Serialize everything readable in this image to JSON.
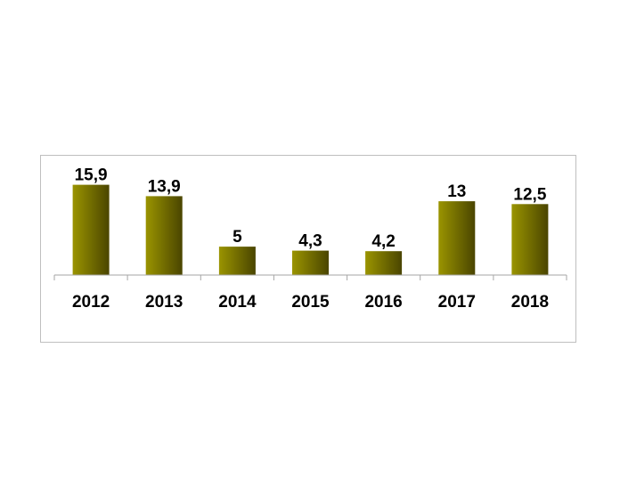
{
  "chart_data": {
    "type": "bar",
    "categories": [
      "2012",
      "2013",
      "2014",
      "2015",
      "2016",
      "2017",
      "2018"
    ],
    "values": [
      15.9,
      13.9,
      5,
      4.3,
      4.2,
      13,
      12.5
    ],
    "data_labels": [
      "15,9",
      "13,9",
      "5",
      "4,3",
      "4,2",
      "13",
      "12,5"
    ],
    "title": "",
    "xlabel": "",
    "ylabel": "",
    "ylim": [
      0,
      16
    ],
    "grid": false,
    "legend": "none",
    "colors": {
      "bar_light": "#9a9400",
      "bar_dark": "#4a4500",
      "axis": "#a6a6a6"
    }
  }
}
